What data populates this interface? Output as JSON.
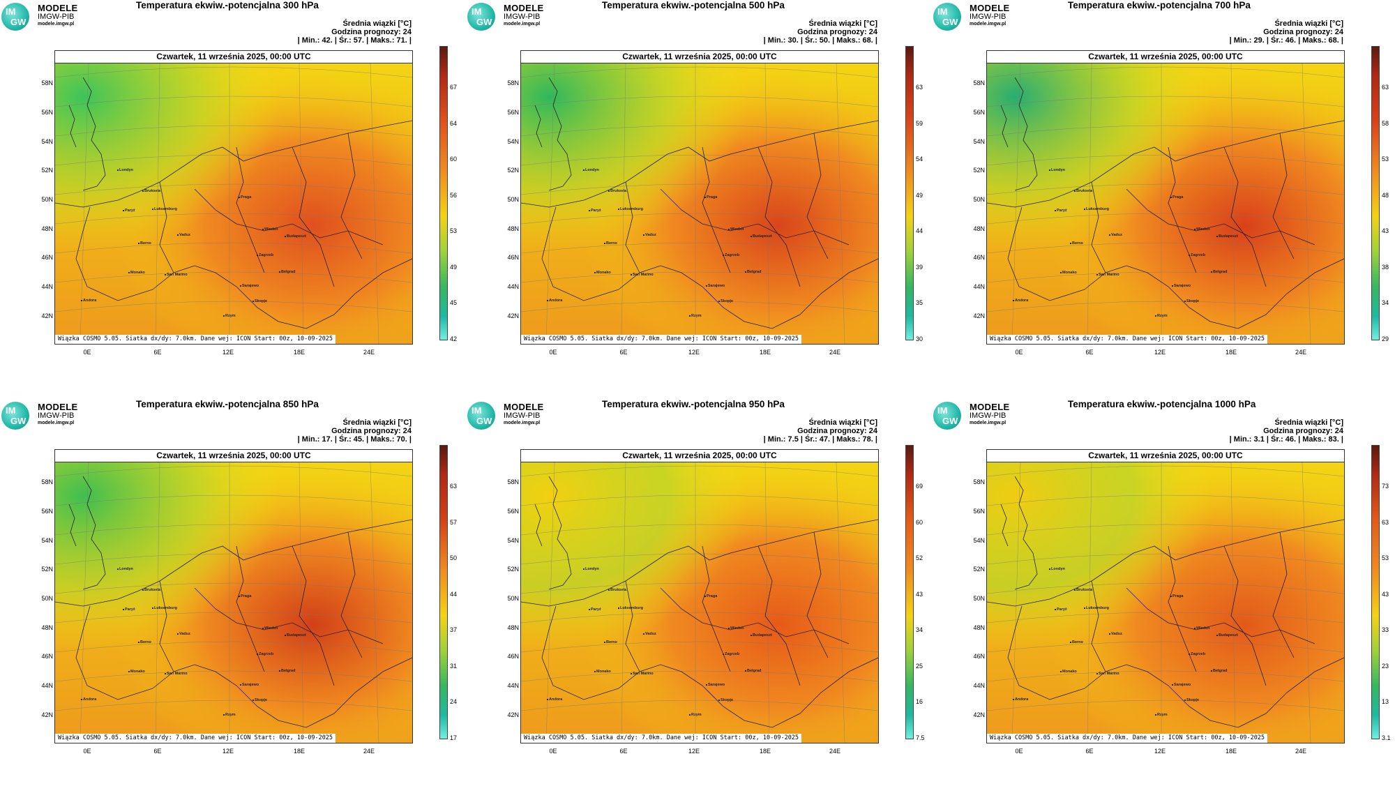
{
  "logo": {
    "line1": "MODELE",
    "line2": "IMGW-PIB",
    "line3": "modele.imgw.pl",
    "mark_top": "IM",
    "mark_bottom": "GW"
  },
  "common": {
    "info_line1": "Średnia wiązki [°C]",
    "info_line2": "Godzina prognozy: 24",
    "date": "Czwartek, 11 września 2025, 00:00 UTC",
    "footnote": "Wiązka COSMO 5.05. Siatka dx/dy: 7.0km. Dane wej: ICON Start: 00z, 10-09-2025",
    "lat_labels": [
      "58N",
      "56N",
      "54N",
      "52N",
      "50N",
      "48N",
      "46N",
      "44N",
      "42N"
    ],
    "lon_labels": [
      "0E",
      "6E",
      "12E",
      "18E",
      "24E"
    ],
    "cities": [
      "Londyn",
      "Bruksela",
      "Paryż",
      "Luksemburg",
      "Praga",
      "Wiedeń",
      "Budapeszt",
      "Berno",
      "Vaduz",
      "Zagrzeb",
      "Belgrad",
      "Monako",
      "San Marino",
      "Sarajewo",
      "Andora",
      "Skopje",
      "Rzym"
    ]
  },
  "panels": [
    {
      "title": "Temperatura ekwiw.-potencjalna 300 hPa",
      "stats": "| Min.:    42. | Śr.:    57. | Maks.:    71. |",
      "ticks": [
        "67",
        "64",
        "60",
        "56",
        "53",
        "49",
        "45",
        "42"
      ],
      "hot": "#e0501e",
      "cool": "#3cc45a"
    },
    {
      "title": "Temperatura ekwiw.-potencjalna 500 hPa",
      "stats": "| Min.:    30. | Śr.:    50. | Maks.:    68. |",
      "ticks": [
        "63",
        "59",
        "54",
        "49",
        "44",
        "39",
        "35",
        "30"
      ],
      "hot": "#d9451b",
      "cool": "#2fb85c"
    },
    {
      "title": "Temperatura ekwiw.-potencjalna 700 hPa",
      "stats": "| Min.:    29. | Śr.:    46. | Maks.:    68. |",
      "ticks": [
        "63",
        "58",
        "53",
        "48",
        "43",
        "38",
        "34",
        "29"
      ],
      "hot": "#d9401a",
      "cool": "#27ad70"
    },
    {
      "title": "Temperatura ekwiw.-potencjalna 850 hPa",
      "stats": "| Min.:    17. | Śr.:    45. | Maks.:    70. |",
      "ticks": [
        "63",
        "57",
        "50",
        "44",
        "37",
        "31",
        "24",
        "17"
      ],
      "hot": "#d24018",
      "cool": "#3fbe50"
    },
    {
      "title": "Temperatura ekwiw.-potencjalna 950 hPa",
      "stats": "| Min.:    7.5 | Śr.:    47. | Maks.:    78. |",
      "ticks": [
        "69",
        "60",
        "52",
        "43",
        "34",
        "25",
        "16",
        "7.5"
      ],
      "hot": "#e65a18",
      "cool": "#f2d010"
    },
    {
      "title": "Temperatura ekwiw.-potencjalna 1000 hPa",
      "stats": "| Min.:    3.1 | Śr.:    46. | Maks.:    83. |",
      "ticks": [
        "73",
        "63",
        "53",
        "43",
        "33",
        "23",
        "13",
        "3.1"
      ],
      "hot": "#e25a1a",
      "cool": "#f0cc12"
    }
  ]
}
